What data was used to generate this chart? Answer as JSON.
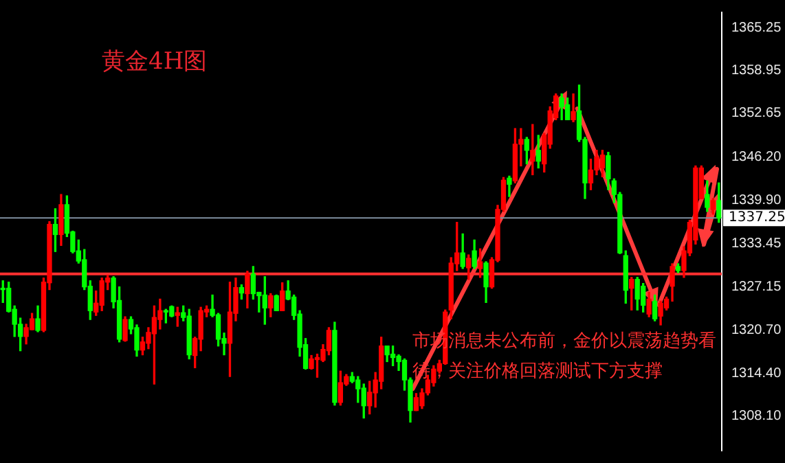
{
  "chart_data": {
    "type": "candlestick",
    "title": "黄金4H图",
    "annotations": [
      "市场消息未公布前，金价以震荡趋势看待，关注价格回落测试下方支撑"
    ],
    "categories": [
      null,
      null,
      null,
      null,
      null,
      null,
      null,
      null,
      null,
      null,
      null,
      null,
      null,
      null,
      null,
      null,
      null,
      null,
      null,
      null,
      null,
      null,
      null,
      null,
      null,
      null,
      null,
      null,
      null,
      null,
      null,
      null,
      null,
      null,
      null,
      null,
      null,
      null,
      null,
      null,
      null,
      null,
      null,
      null,
      null,
      null,
      null,
      null,
      null,
      null,
      null,
      null,
      null,
      null,
      null,
      null,
      null,
      null,
      null,
      null,
      null,
      null,
      null,
      null,
      null,
      null,
      null,
      null,
      null,
      null,
      null,
      null,
      null,
      null,
      null,
      null,
      null,
      null,
      null,
      null,
      null,
      null,
      null,
      null,
      null,
      null,
      null,
      null,
      null,
      null,
      null,
      null,
      null,
      null,
      null,
      null,
      null,
      null,
      null,
      null,
      null,
      null,
      null,
      null,
      null,
      null,
      null,
      null,
      null,
      null,
      null,
      null,
      null,
      null,
      null,
      null,
      null,
      null,
      null,
      null,
      null,
      null,
      null,
      null
    ],
    "ohlc": [
      [
        1326.9,
        1328.0,
        1324.8,
        1326.7
      ],
      [
        1326.9,
        1327.8,
        1323.4,
        1323.5
      ],
      [
        1323.8,
        1324.3,
        1319.8,
        1321.6
      ],
      [
        1321.6,
        1322.5,
        1317.7,
        1319.8
      ],
      [
        1319.8,
        1321.6,
        1318.7,
        1321.1
      ],
      [
        1320.8,
        1323.2,
        1320.8,
        1322.4
      ],
      [
        1322.4,
        1324.3,
        1320.5,
        1320.7
      ],
      [
        1320.7,
        1328.4,
        1320.5,
        1327.8
      ],
      [
        1327.7,
        1336.7,
        1326.7,
        1336.3
      ],
      [
        1336.3,
        1338.6,
        1332.3,
        1334.8
      ],
      [
        1334.8,
        1340.7,
        1333.2,
        1339.2
      ],
      [
        1339.2,
        1340.5,
        1334.5,
        1335.0
      ],
      [
        1335.2,
        1335.3,
        1332.1,
        1332.3
      ],
      [
        1332.4,
        1334.0,
        1330.6,
        1330.9
      ],
      [
        1331.1,
        1332.6,
        1326.7,
        1327.1
      ],
      [
        1327.2,
        1328.0,
        1322.3,
        1323.6
      ],
      [
        1323.4,
        1326.5,
        1322.9,
        1324.7
      ],
      [
        1324.4,
        1328.4,
        1323.6,
        1328.0
      ],
      [
        1327.8,
        1328.8,
        1326.7,
        1328.4
      ],
      [
        1328.4,
        1328.6,
        1324.0,
        1324.9
      ],
      [
        1325.1,
        1327.1,
        1319.0,
        1319.4
      ],
      [
        1319.2,
        1322.7,
        1319.1,
        1322.3
      ],
      [
        1322.3,
        1322.7,
        1320.2,
        1320.9
      ],
      [
        1321.1,
        1321.5,
        1316.9,
        1317.8
      ],
      [
        1317.8,
        1319.7,
        1317.1,
        1319.0
      ],
      [
        1318.8,
        1321.1,
        1318.0,
        1320.4
      ],
      [
        1320.2,
        1324.3,
        1312.8,
        1322.6
      ],
      [
        1322.3,
        1325.3,
        1320.9,
        1323.6
      ],
      [
        1323.6,
        1323.8,
        1321.8,
        1323.4
      ],
      [
        1324.2,
        1324.3,
        1322.7,
        1322.8
      ],
      [
        1322.9,
        1324.1,
        1321.3,
        1323.3
      ],
      [
        1323.3,
        1324.3,
        1322.1,
        1322.6
      ],
      [
        1322.8,
        1323.8,
        1316.5,
        1317.1
      ],
      [
        1317.0,
        1319.7,
        1315.2,
        1319.5
      ],
      [
        1319.4,
        1324.1,
        1317.7,
        1323.6
      ],
      [
        1323.4,
        1324.3,
        1322.7,
        1323.8
      ],
      [
        1323.8,
        1325.9,
        1322.7,
        1322.9
      ],
      [
        1323.0,
        1323.2,
        1318.4,
        1319.4
      ],
      [
        1319.5,
        1320.3,
        1317.1,
        1318.8
      ],
      [
        1318.8,
        1327.8,
        1313.9,
        1323.4
      ],
      [
        1323.2,
        1328.4,
        1322.1,
        1327.0
      ],
      [
        1327.0,
        1327.4,
        1325.3,
        1326.2
      ],
      [
        1326.1,
        1329.4,
        1324.0,
        1329.0
      ],
      [
        1329.0,
        1330.1,
        1325.3,
        1326.1
      ],
      [
        1326.3,
        1326.3,
        1323.4,
        1325.8
      ],
      [
        1325.9,
        1328.6,
        1321.6,
        1324.0
      ],
      [
        1324.0,
        1326.1,
        1322.7,
        1325.8
      ],
      [
        1325.8,
        1325.9,
        1323.6,
        1323.6
      ],
      [
        1323.6,
        1327.7,
        1323.6,
        1326.5
      ],
      [
        1326.5,
        1328.0,
        1325.2,
        1325.3
      ],
      [
        1325.6,
        1325.9,
        1322.3,
        1322.9
      ],
      [
        1323.1,
        1323.6,
        1316.9,
        1318.2
      ],
      [
        1318.6,
        1319.5,
        1315.0,
        1315.1
      ],
      [
        1315.1,
        1317.0,
        1315.0,
        1316.5
      ],
      [
        1316.4,
        1317.2,
        1313.8,
        1316.7
      ],
      [
        1316.3,
        1318.6,
        1316.1,
        1317.9
      ],
      [
        1317.7,
        1321.1,
        1317.1,
        1320.7
      ],
      [
        1320.7,
        1321.9,
        1309.7,
        1310.1
      ],
      [
        1310.1,
        1314.7,
        1309.7,
        1313.0
      ],
      [
        1312.8,
        1314.2,
        1312.6,
        1313.9
      ],
      [
        1313.9,
        1314.5,
        1313.0,
        1313.2
      ],
      [
        1313.4,
        1313.9,
        1310.1,
        1312.1
      ],
      [
        1312.2,
        1312.8,
        1307.8,
        1309.6
      ],
      [
        1309.6,
        1313.2,
        1308.4,
        1311.6
      ],
      [
        1311.5,
        1314.5,
        1309.4,
        1313.4
      ],
      [
        1313.2,
        1319.7,
        1312.1,
        1318.4
      ],
      [
        1318.4,
        1318.4,
        1316.1,
        1317.1
      ],
      [
        1317.2,
        1318.4,
        1315.5,
        1316.7
      ],
      [
        1316.9,
        1317.1,
        1314.8,
        1316.1
      ],
      [
        1316.3,
        1316.5,
        1311.9,
        1313.4
      ],
      [
        1313.4,
        1313.7,
        1307.2,
        1308.9
      ],
      [
        1308.9,
        1311.4,
        1308.9,
        1310.8
      ],
      [
        1309.6,
        1312.1,
        1309.2,
        1311.5
      ],
      [
        1311.5,
        1314.1,
        1311.2,
        1313.4
      ],
      [
        1313.0,
        1315.5,
        1312.5,
        1315.0
      ],
      [
        1314.7,
        1316.3,
        1314.4,
        1315.8
      ],
      [
        1315.8,
        1323.7,
        1315.7,
        1323.4
      ],
      [
        1323.7,
        1331.4,
        1322.4,
        1330.6
      ],
      [
        1330.5,
        1336.6,
        1329.5,
        1332.1
      ],
      [
        1332.1,
        1334.9,
        1329.8,
        1330.1
      ],
      [
        1329.9,
        1331.8,
        1328.2,
        1331.3
      ],
      [
        1332.4,
        1334.0,
        1329.8,
        1330.1
      ],
      [
        1329.8,
        1332.7,
        1328.5,
        1330.8
      ],
      [
        1330.6,
        1330.8,
        1324.8,
        1327.1
      ],
      [
        1327.1,
        1331.4,
        1326.9,
        1331.1
      ],
      [
        1331.0,
        1339.1,
        1330.8,
        1338.5
      ],
      [
        1338.5,
        1343.2,
        1338.2,
        1342.8
      ],
      [
        1343.1,
        1343.4,
        1340.4,
        1342.2
      ],
      [
        1342.7,
        1350.4,
        1342.4,
        1348.1
      ],
      [
        1348.1,
        1350.4,
        1344.9,
        1348.8
      ],
      [
        1348.8,
        1349.1,
        1345.2,
        1347.2
      ],
      [
        1345.6,
        1351.0,
        1343.6,
        1347.2
      ],
      [
        1347.2,
        1349.4,
        1344.6,
        1345.6
      ],
      [
        1345.2,
        1349.7,
        1344.0,
        1349.4
      ],
      [
        1348.1,
        1353.6,
        1347.5,
        1353.0
      ],
      [
        1352.0,
        1355.5,
        1351.7,
        1355.2
      ],
      [
        1354.9,
        1355.5,
        1351.7,
        1353.6
      ],
      [
        1353.9,
        1354.9,
        1351.7,
        1351.7
      ],
      [
        1351.7,
        1355.5,
        1351.4,
        1352.9
      ],
      [
        1353.0,
        1356.8,
        1348.5,
        1348.8
      ],
      [
        1348.8,
        1349.1,
        1340.1,
        1342.4
      ],
      [
        1342.4,
        1345.9,
        1341.4,
        1344.3
      ],
      [
        1344.3,
        1347.2,
        1343.6,
        1346.2
      ],
      [
        1344.6,
        1347.2,
        1343.3,
        1346.5
      ],
      [
        1346.4,
        1346.9,
        1341.4,
        1343.0
      ],
      [
        1342.7,
        1343.0,
        1339.5,
        1340.7
      ],
      [
        1340.7,
        1341.0,
        1332.0,
        1332.1
      ],
      [
        1331.7,
        1332.4,
        1324.7,
        1326.6
      ],
      [
        1326.9,
        1328.5,
        1323.7,
        1328.2
      ],
      [
        1328.2,
        1328.5,
        1323.7,
        1325.3
      ],
      [
        1327.2,
        1327.6,
        1323.4,
        1324.4
      ],
      [
        1323.1,
        1326.3,
        1322.7,
        1325.3
      ],
      [
        1325.0,
        1325.9,
        1322.1,
        1322.4
      ],
      [
        1322.8,
        1325.0,
        1321.5,
        1324.7
      ],
      [
        1324.0,
        1325.6,
        1323.7,
        1325.3
      ],
      [
        1327.2,
        1330.5,
        1325.0,
        1330.1
      ],
      [
        1330.1,
        1330.5,
        1329.2,
        1329.5
      ],
      [
        1329.5,
        1333.0,
        1328.5,
        1332.4
      ],
      [
        1332.1,
        1336.9,
        1331.7,
        1336.6
      ],
      [
        1334.0,
        1344.9,
        1333.4,
        1344.6
      ],
      [
        1340.1,
        1344.9,
        1340.1,
        1344.6
      ],
      [
        1340.7,
        1342.7,
        1338.2,
        1338.8
      ],
      [
        1338.5,
        1340.1,
        1337.8,
        1339.8
      ],
      [
        1339.8,
        1342.4,
        1336.6,
        1337.25
      ]
    ],
    "colors": [
      "#00ff00",
      "#00ff00",
      "#00ff00",
      "#00ff00",
      "#ff0000",
      "#ff0000",
      "#00ff00",
      "#ff0000",
      "#ff0000",
      "#00ff00",
      "#ff0000",
      "#00ff00",
      "#00ff00",
      "#00ff00",
      "#00ff00",
      "#00ff00",
      "#ff0000",
      "#ff0000",
      "#ff0000",
      "#00ff00",
      "#00ff00",
      "#ff0000",
      "#00ff00",
      "#00ff00",
      "#ff0000",
      "#ff0000",
      "#ff0000",
      "#ff0000",
      "#00ff00",
      "#00ff00",
      "#ff0000",
      "#00ff00",
      "#00ff00",
      "#ff0000",
      "#ff0000",
      "#ff0000",
      "#00ff00",
      "#00ff00",
      "#00ff00",
      "#ff0000",
      "#ff0000",
      "#00ff00",
      "#ff0000",
      "#00ff00",
      "#00ff00",
      "#00ff00",
      "#ff0000",
      "#00ff00",
      "#ff0000",
      "#00ff00",
      "#00ff00",
      "#00ff00",
      "#00ff00",
      "#ff0000",
      "#ff0000",
      "#ff0000",
      "#ff0000",
      "#00ff00",
      "#ff0000",
      "#ff0000",
      "#00ff00",
      "#00ff00",
      "#00ff00",
      "#ff0000",
      "#ff0000",
      "#ff0000",
      "#00ff00",
      "#00ff00",
      "#00ff00",
      "#00ff00",
      "#00ff00",
      "#ff0000",
      "#ff0000",
      "#ff0000",
      "#ff0000",
      "#ff0000",
      "#ff0000",
      "#ff0000",
      "#ff0000",
      "#00ff00",
      "#ff0000",
      "#00ff00",
      "#ff0000",
      "#00ff00",
      "#ff0000",
      "#ff0000",
      "#ff0000",
      "#00ff00",
      "#ff0000",
      "#ff0000",
      "#00ff00",
      "#ff0000",
      "#00ff00",
      "#ff0000",
      "#ff0000",
      "#ff0000",
      "#00ff00",
      "#00ff00",
      "#ff0000",
      "#00ff00",
      "#00ff00",
      "#ff0000",
      "#ff0000",
      "#ff0000",
      "#00ff00",
      "#00ff00",
      "#00ff00",
      "#00ff00",
      "#ff0000",
      "#00ff00",
      "#00ff00",
      "#ff0000",
      "#00ff00",
      "#ff0000",
      "#ff0000",
      "#ff0000",
      "#00ff00",
      "#ff0000",
      "#ff0000",
      "#ff0000",
      "#ff0000",
      "#00ff00",
      "#ff0000",
      "#00ff00"
    ],
    "ylim": [
      1303.0,
      1367.5
    ],
    "yticks": [
      1365.25,
      1358.95,
      1352.65,
      {
        "value": 1346.2,
        "label": "1346.20"
      },
      {
        "value": 1339.9,
        "label": "1339.90"
      },
      1333.45,
      1327.15,
      {
        "value": 1320.7,
        "label": "1320.70"
      },
      {
        "value": 1314.4,
        "label": "1314.40"
      },
      {
        "value": 1308.1,
        "label": "1308.10"
      }
    ],
    "tick_labels": "y",
    "ref_lines": [
      {
        "axis": "y",
        "value": 1337.25,
        "label": "1337.25",
        "color": "#7f8fa0"
      },
      {
        "axis": "y",
        "value": 1329.0,
        "color": "#ff3030"
      }
    ]
  }
}
